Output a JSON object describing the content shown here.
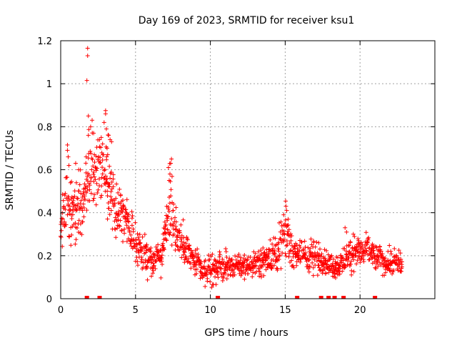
{
  "chart_data": {
    "type": "scatter",
    "title": "Day 169 of 2023, SRMTID for receiver ksu1",
    "xlabel": "GPS time / hours",
    "ylabel": "SRMTID / TECUs",
    "xlim": [
      0,
      25
    ],
    "ylim": [
      0,
      1.2
    ],
    "grid": true,
    "legend": "none",
    "xticks": [
      0,
      5,
      10,
      15,
      20
    ],
    "xtick_labels": [
      "0",
      "5",
      "10",
      "15",
      "20"
    ],
    "yticks": [
      0,
      0.2,
      0.4,
      0.6,
      0.8,
      1.0,
      1.2
    ],
    "ytick_labels": [
      "0",
      "0.2",
      "0.4",
      "0.6",
      "0.8",
      "1",
      "1.2"
    ],
    "marker": "+",
    "color": "#ff0000",
    "trend_profile": [
      {
        "x": 0.0,
        "y": 0.35,
        "spread": 0.08
      },
      {
        "x": 0.5,
        "y": 0.45,
        "spread": 0.12
      },
      {
        "x": 1.0,
        "y": 0.4,
        "spread": 0.1
      },
      {
        "x": 1.5,
        "y": 0.45,
        "spread": 0.12
      },
      {
        "x": 1.9,
        "y": 0.6,
        "spread": 0.15
      },
      {
        "x": 2.3,
        "y": 0.6,
        "spread": 0.14
      },
      {
        "x": 2.8,
        "y": 0.6,
        "spread": 0.14
      },
      {
        "x": 3.2,
        "y": 0.55,
        "spread": 0.12
      },
      {
        "x": 3.7,
        "y": 0.4,
        "spread": 0.1
      },
      {
        "x": 4.3,
        "y": 0.38,
        "spread": 0.08
      },
      {
        "x": 4.8,
        "y": 0.3,
        "spread": 0.08
      },
      {
        "x": 5.2,
        "y": 0.22,
        "spread": 0.07
      },
      {
        "x": 6.0,
        "y": 0.18,
        "spread": 0.06
      },
      {
        "x": 6.8,
        "y": 0.2,
        "spread": 0.06
      },
      {
        "x": 7.3,
        "y": 0.45,
        "spread": 0.12
      },
      {
        "x": 7.8,
        "y": 0.3,
        "spread": 0.08
      },
      {
        "x": 8.5,
        "y": 0.22,
        "spread": 0.06
      },
      {
        "x": 9.5,
        "y": 0.12,
        "spread": 0.05
      },
      {
        "x": 10.5,
        "y": 0.15,
        "spread": 0.05
      },
      {
        "x": 12.0,
        "y": 0.15,
        "spread": 0.04
      },
      {
        "x": 13.5,
        "y": 0.17,
        "spread": 0.05
      },
      {
        "x": 14.5,
        "y": 0.22,
        "spread": 0.07
      },
      {
        "x": 15.0,
        "y": 0.3,
        "spread": 0.09
      },
      {
        "x": 15.5,
        "y": 0.22,
        "spread": 0.05
      },
      {
        "x": 16.5,
        "y": 0.2,
        "spread": 0.06
      },
      {
        "x": 17.5,
        "y": 0.18,
        "spread": 0.05
      },
      {
        "x": 18.5,
        "y": 0.15,
        "spread": 0.04
      },
      {
        "x": 19.5,
        "y": 0.22,
        "spread": 0.06
      },
      {
        "x": 20.5,
        "y": 0.22,
        "spread": 0.05
      },
      {
        "x": 21.5,
        "y": 0.18,
        "spread": 0.05
      },
      {
        "x": 22.8,
        "y": 0.16,
        "spread": 0.04
      }
    ],
    "outliers": [
      {
        "x": 1.8,
        "y": 1.165
      },
      {
        "x": 1.8,
        "y": 1.13
      },
      {
        "x": 1.75,
        "y": 1.015
      },
      {
        "x": 1.85,
        "y": 0.85
      },
      {
        "x": 2.1,
        "y": 0.83
      },
      {
        "x": 2.0,
        "y": 0.8
      },
      {
        "x": 2.2,
        "y": 0.77
      },
      {
        "x": 2.25,
        "y": 0.67
      },
      {
        "x": 1.7,
        "y": 0.66
      },
      {
        "x": 3.0,
        "y": 0.875
      },
      {
        "x": 3.0,
        "y": 0.86
      },
      {
        "x": 2.9,
        "y": 0.82
      },
      {
        "x": 3.05,
        "y": 0.79
      },
      {
        "x": 3.2,
        "y": 0.76
      },
      {
        "x": 3.3,
        "y": 0.74
      },
      {
        "x": 3.4,
        "y": 0.73
      },
      {
        "x": 2.8,
        "y": 0.72
      },
      {
        "x": 3.1,
        "y": 0.7
      },
      {
        "x": 0.45,
        "y": 0.715
      },
      {
        "x": 0.45,
        "y": 0.69
      },
      {
        "x": 0.5,
        "y": 0.66
      },
      {
        "x": 0.55,
        "y": 0.62
      },
      {
        "x": 1.0,
        "y": 0.63
      },
      {
        "x": 1.2,
        "y": 0.6
      },
      {
        "x": 7.4,
        "y": 0.65
      },
      {
        "x": 7.35,
        "y": 0.63
      },
      {
        "x": 7.2,
        "y": 0.61
      },
      {
        "x": 7.3,
        "y": 0.58
      },
      {
        "x": 7.25,
        "y": 0.55
      },
      {
        "x": 15.05,
        "y": 0.43
      },
      {
        "x": 15.1,
        "y": 0.41
      },
      {
        "x": 14.9,
        "y": 0.39
      },
      {
        "x": 15.2,
        "y": 0.37
      },
      {
        "x": 19.0,
        "y": 0.33
      },
      {
        "x": 19.1,
        "y": 0.31
      }
    ],
    "zero_markers": [
      1.75,
      2.6,
      10.5,
      15.8,
      17.4,
      17.9,
      18.3,
      18.9,
      21.0
    ]
  }
}
